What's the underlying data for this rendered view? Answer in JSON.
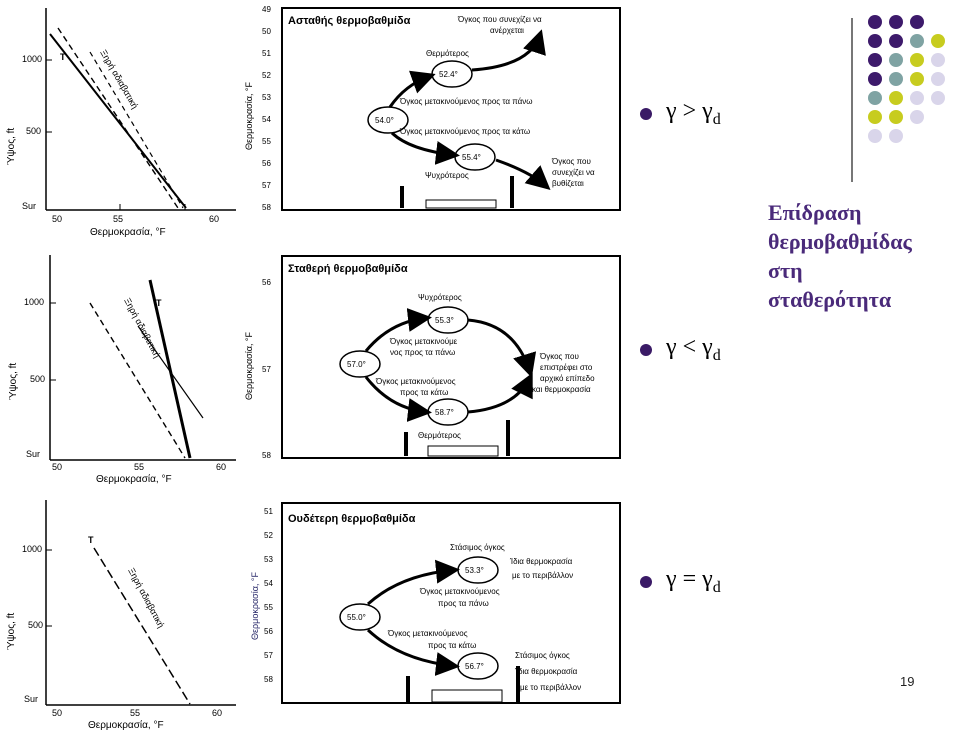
{
  "slide": {
    "title_lines": [
      "Επίδραση",
      "θερμοβαθμίδας",
      "στη",
      "σταθερότητα"
    ],
    "page_number": "19",
    "dot_colors": [
      "#3d1a6b",
      "#7fa3a3",
      "#c7cc1f",
      "#d9d5ea"
    ]
  },
  "bullets": [
    {
      "gamma": "γ",
      "op": ">",
      "gamma2": "γ",
      "sub": "d"
    },
    {
      "gamma": "γ",
      "op": "<",
      "gamma2": "γ",
      "sub": "d"
    },
    {
      "gamma": "γ",
      "op": "=",
      "gamma2": "γ",
      "sub": "d"
    }
  ],
  "graphs": {
    "ylabel": "Ύψος, ft",
    "xlabel": "Θερμοκρασία, °F",
    "x_ticks": [
      "50",
      "55",
      "60"
    ],
    "y_ticks": [
      "Sur",
      "500",
      "1000"
    ],
    "adiabat_label": "Ξηρή αδιαβατική",
    "t_label": "T"
  },
  "panels": [
    {
      "title": "Ασταθής θερμοβαθμίδα",
      "yaxis_label": "Θερμοκρασία, °F",
      "ticks": [
        "49",
        "50",
        "51",
        "52",
        "53",
        "54",
        "55",
        "56",
        "57",
        "58"
      ],
      "center_temp": "54.0°",
      "upper_temp": "52.4°",
      "lower_temp": "55.4°",
      "label_top_note": "Θερμότερος",
      "label_bottom_note": "Ψυχρότερος",
      "label_up": "Όγκος μετακινούμενος προς τα πάνω",
      "label_down": "Όγκος μετακινούμενος προς τα κάτω",
      "right_top": [
        "Όγκος που συνεχίζει να",
        "ανέρχεται"
      ],
      "right_bottom": [
        "Όγκος που",
        "συνεχίζει να",
        "βυθίζεται"
      ]
    },
    {
      "title": "Σταθερή θερμοβαθμίδα",
      "yaxis_label": "Θερμοκρασία, °F",
      "ticks": [
        "56",
        "57",
        "58"
      ],
      "center_temp": "57.0°",
      "upper_temp": "55.3°",
      "lower_temp": "58.7°",
      "label_top_note": "Ψυχρότερος",
      "label_bottom_note": "Θερμότερος",
      "label_up": [
        "Όγκος μετακινούμε",
        "νος προς τα πάνω"
      ],
      "label_down": [
        "Όγκος μετακινούμενος",
        "προς τα κάτω"
      ],
      "right": [
        "Όγκος που",
        "επιστρέφει στο",
        "αρχικό επίπεδο",
        "και θερμοκρασία"
      ]
    },
    {
      "title": "Ουδέτερη θερμοβαθμίδα",
      "yaxis_label": "Θερμοκρασία, °F",
      "ticks": [
        "51",
        "52",
        "53",
        "54",
        "55",
        "56",
        "57",
        "58"
      ],
      "center_temp": "55.0°",
      "upper_temp": "53.3°",
      "lower_temp": "56.7°",
      "top_note": "Στάσιμος όγκος",
      "bottom_note": "Στάσιμος όγκος",
      "label_up": [
        "Όγκος μετακινούμενος",
        "προς τα πάνω"
      ],
      "label_down": [
        "Όγκος μετακινούμενος",
        "προς τα κάτω"
      ],
      "right_top": [
        "Ίδια θερμοκρασία",
        "με το περιβάλλον"
      ],
      "right_bottom": [
        "Ίδια θερμοκρασία",
        "με το περιβάλλον"
      ]
    }
  ]
}
